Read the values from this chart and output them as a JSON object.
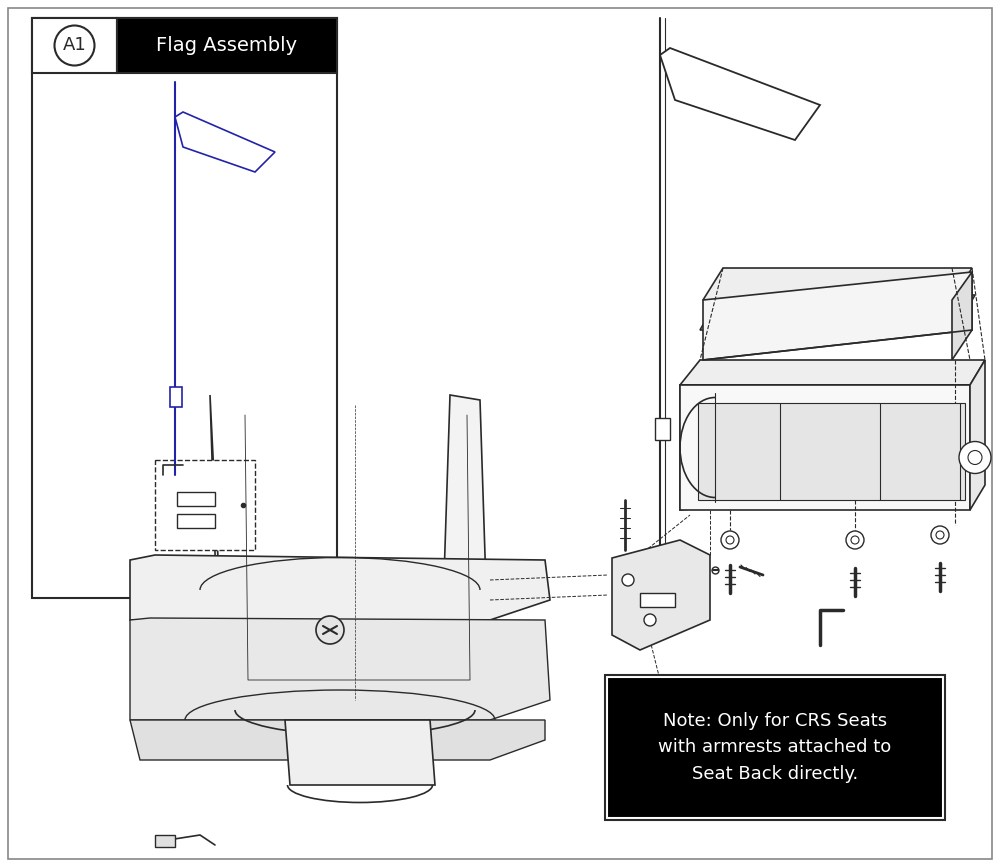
{
  "bg_color": "#ffffff",
  "line_color": "#2a2a2a",
  "blue_color": "#2222aa",
  "flag_assembly_label": "Flag Assembly",
  "a1_label": "A1",
  "note_text": "Note: Only for CRS Seats\nwith armrests attached to\nSeat Back directly.",
  "figw": 10.0,
  "figh": 8.67,
  "dpi": 100
}
